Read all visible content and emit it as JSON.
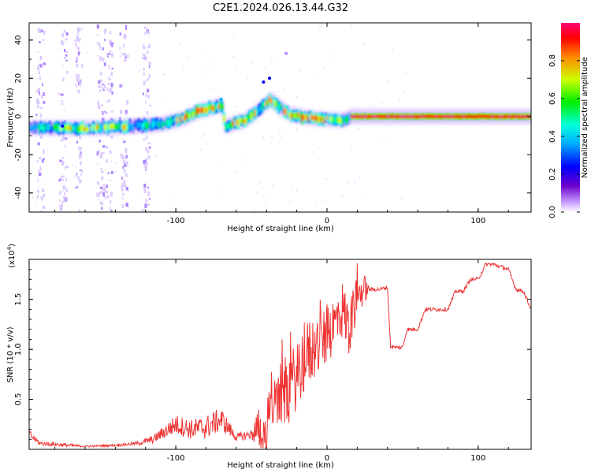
{
  "page_title": "C2E1.2024.026.13.44.G32",
  "colors": {
    "snr_line": "#ee3333",
    "colorbar": [
      "#6b00cc",
      "#0000ff",
      "#00aaff",
      "#00ffdd",
      "#00ee00",
      "#ccff00",
      "#ff8800",
      "#ff0000",
      "#ff0077"
    ]
  },
  "chart_data": [
    {
      "type": "heatmap",
      "title": "C2E1.2024.026.13.44.G32",
      "xlabel": "Height of straight line (km)",
      "ylabel": "Frequency (Hz)",
      "xlim": [
        -197,
        135
      ],
      "ylim": [
        -50,
        49
      ],
      "x_ticks": [
        "-100",
        "0",
        "100"
      ],
      "y_ticks": [
        "40",
        "20",
        "0",
        "-20",
        "-40"
      ],
      "colorbar": {
        "label": "Normalized spectral amplitude",
        "ticks": [
          "0.0",
          "0.2",
          "0.4",
          "0.6",
          "0.8"
        ],
        "range": [
          0,
          1
        ]
      },
      "ridge": {
        "description_points": [
          [
            -197,
            -6
          ],
          [
            -150,
            -6
          ],
          [
            -130,
            -5
          ],
          [
            -110,
            -4
          ],
          [
            -95,
            -1
          ],
          [
            -85,
            3
          ],
          [
            -70,
            6
          ],
          [
            -68,
            -5
          ],
          [
            -55,
            -2
          ],
          [
            -45,
            4
          ],
          [
            -38,
            9
          ],
          [
            -32,
            5
          ],
          [
            -25,
            1
          ],
          [
            -10,
            -1
          ],
          [
            10,
            -2
          ],
          [
            15,
            0
          ],
          [
            60,
            0
          ],
          [
            100,
            0
          ],
          [
            135,
            0
          ]
        ],
        "peak_amplitude_segments": [
          [
            -180,
            -130,
            0.6
          ],
          [
            -100,
            -60,
            0.7
          ],
          [
            -60,
            -35,
            0.6
          ],
          [
            -30,
            10,
            0.75
          ],
          [
            15,
            135,
            0.9
          ]
        ]
      }
    },
    {
      "type": "line",
      "xlabel": "Height of straight line (km)",
      "ylabel": "SNR (10 * v/v)",
      "y_multiplier": "(x10",
      "y_multiplier_exp": "4",
      "y_multiplier_close": ")",
      "xlim": [
        -197,
        135
      ],
      "ylim": [
        0.0,
        1.9
      ],
      "x_ticks": [
        "-100",
        "0",
        "100"
      ],
      "y_ticks": [
        "0.5",
        "1.0",
        "1.5"
      ],
      "series": [
        {
          "x": [
            -197,
            -190,
            -180,
            -160,
            -140,
            -125,
            -115,
            -100,
            -90,
            -80,
            -70,
            -60,
            -50,
            -45,
            -40,
            -38,
            -35,
            -30,
            -25,
            -20,
            -15,
            -10,
            -5,
            0,
            5,
            10,
            15,
            20,
            25,
            28,
            30,
            35,
            40,
            42,
            45,
            50,
            53,
            55,
            60,
            65,
            68,
            72,
            80,
            85,
            90,
            95,
            100,
            105,
            110,
            120,
            125,
            130,
            135
          ],
          "y": [
            0.15,
            0.06,
            0.05,
            0.03,
            0.04,
            0.06,
            0.1,
            0.25,
            0.2,
            0.22,
            0.3,
            0.12,
            0.15,
            0.22,
            0.12,
            0.6,
            0.4,
            0.55,
            0.6,
            0.75,
            0.9,
            1.0,
            1.05,
            1.15,
            1.25,
            1.4,
            1.2,
            1.55,
            1.6,
            1.6,
            1.6,
            1.6,
            1.62,
            1.03,
            1.02,
            1.02,
            1.2,
            1.2,
            1.2,
            1.4,
            1.4,
            1.4,
            1.4,
            1.58,
            1.58,
            1.7,
            1.7,
            1.85,
            1.85,
            1.8,
            1.6,
            1.58,
            1.4
          ],
          "noise": [
            0.05,
            0.02,
            0.02,
            0.01,
            0.01,
            0.02,
            0.04,
            0.1,
            0.1,
            0.12,
            0.12,
            0.04,
            0.05,
            0.25,
            0.15,
            0.35,
            0.3,
            0.35,
            0.35,
            0.35,
            0.35,
            0.35,
            0.3,
            0.3,
            0.3,
            0.3,
            0.3,
            0.2,
            0.15,
            0.02,
            0.02,
            0.02,
            0.02,
            0.02,
            0.02,
            0.02,
            0.02,
            0.02,
            0.02,
            0.02,
            0.02,
            0.02,
            0.02,
            0.02,
            0.02,
            0.02,
            0.02,
            0.02,
            0.02,
            0.02,
            0.02,
            0.02,
            0.02
          ]
        }
      ]
    }
  ]
}
